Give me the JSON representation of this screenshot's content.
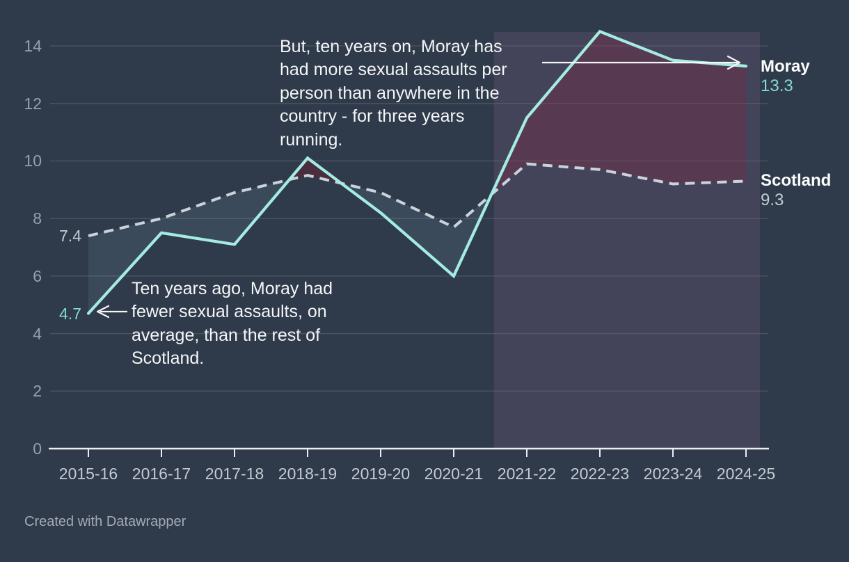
{
  "chart_data": {
    "type": "line",
    "categories": [
      "2015-16",
      "2016-17",
      "2017-18",
      "2018-19",
      "2019-20",
      "2020-21",
      "2021-22",
      "2022-23",
      "2023-24",
      "2024-25"
    ],
    "series": [
      {
        "name": "Moray",
        "values": [
          4.7,
          7.5,
          7.1,
          10.1,
          8.2,
          6.0,
          11.5,
          14.5,
          13.5,
          13.3
        ],
        "style": "solid",
        "start_label": "4.7",
        "end_label": "13.3"
      },
      {
        "name": "Scotland",
        "values": [
          7.4,
          8.0,
          8.9,
          9.5,
          8.9,
          7.7,
          9.9,
          9.7,
          9.2,
          9.3
        ],
        "style": "dashed",
        "start_label": "7.4",
        "end_label": "9.3"
      }
    ],
    "ylim": [
      0,
      14
    ],
    "yticks": [
      0,
      2,
      4,
      6,
      8,
      10,
      12,
      14
    ],
    "grid": "horizontal",
    "legend_position": "right-of-line-ends",
    "highlight_band": {
      "from": "2021-22",
      "to": "2024-25"
    },
    "annotations": [
      {
        "id": "recent",
        "lines": [
          "But, ten years on, Moray has",
          "had more sexual assaults per",
          "person than anywhere in the",
          "country - for three years",
          "running."
        ],
        "arrow_direction": "right",
        "arrow_target_series": "Moray",
        "arrow_target_category": "2024-25"
      },
      {
        "id": "past",
        "lines": [
          "Ten years ago, Moray had",
          "fewer sexual assaults, on",
          "average, than the rest of",
          "Scotland."
        ],
        "arrow_direction": "left",
        "arrow_target_series": "Moray",
        "arrow_target_category": "2015-16"
      }
    ]
  },
  "colors": {
    "background": "#2f3a4a",
    "gridline": "#48525f",
    "axis": "#eceef0",
    "moray_line": "#a4ece2",
    "scotland_line": "#cbd3da",
    "highlight_band": "rgba(126,101,141,0.25)",
    "fill_moray_above": "rgba(130,20,40,0.33)",
    "fill_scotland_above": "rgba(165,215,235,0.10)",
    "annotation_text": "#f4f6f7",
    "value_teal": "#85dbd3",
    "value_gray": "#c4ccd4",
    "footer_text": "#a3abb5"
  },
  "footer": {
    "credit": "Created with Datawrapper"
  }
}
